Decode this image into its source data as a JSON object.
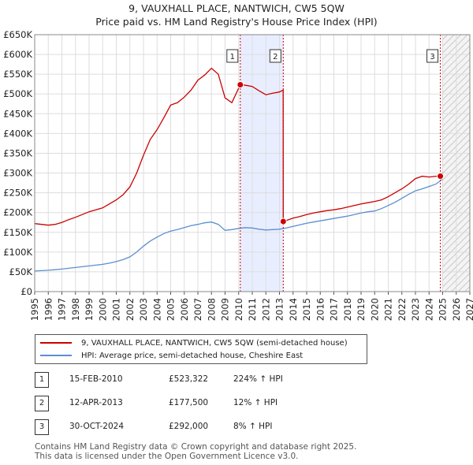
{
  "title_line1": "9, VAUXHALL PLACE, NANTWICH, CW5 5QW",
  "title_line2": "Price paid vs. HM Land Registry's House Price Index (HPI)",
  "colors": {
    "property": "#cc0000",
    "hpi": "#5b8fd0",
    "shade": "#e8eeff",
    "marker_line": "#cc0000"
  },
  "chart_data": {
    "type": "line",
    "title": "Price paid vs. HM Land Registry's House Price Index (HPI)",
    "xlabel": "",
    "ylabel": "",
    "xlim": [
      1995,
      2027
    ],
    "ylim": [
      0,
      650000
    ],
    "x_ticks": [
      1995,
      1996,
      1997,
      1998,
      1999,
      2000,
      2001,
      2002,
      2003,
      2004,
      2005,
      2006,
      2007,
      2008,
      2009,
      2010,
      2011,
      2012,
      2013,
      2014,
      2015,
      2016,
      2017,
      2018,
      2019,
      2020,
      2021,
      2022,
      2023,
      2024,
      2025,
      2026,
      2027
    ],
    "y_ticks": [
      {
        "value": 0,
        "label": "£0"
      },
      {
        "value": 50000,
        "label": "£50K"
      },
      {
        "value": 100000,
        "label": "£100K"
      },
      {
        "value": 150000,
        "label": "£150K"
      },
      {
        "value": 200000,
        "label": "£200K"
      },
      {
        "value": 250000,
        "label": "£250K"
      },
      {
        "value": 300000,
        "label": "£300K"
      },
      {
        "value": 350000,
        "label": "£350K"
      },
      {
        "value": 400000,
        "label": "£400K"
      },
      {
        "value": 450000,
        "label": "£450K"
      },
      {
        "value": 500000,
        "label": "£500K"
      },
      {
        "value": 550000,
        "label": "£550K"
      },
      {
        "value": 600000,
        "label": "£600K"
      },
      {
        "value": 650000,
        "label": "£650K"
      }
    ],
    "shaded_range": [
      2010.12,
      2013.28
    ],
    "future_hatch_from": 2025.0,
    "series": [
      {
        "name": "9, VAUXHALL PLACE, NANTWICH, CW5 5QW (semi-detached house)",
        "color": "#cc0000",
        "x": [
          1995.0,
          1995.5,
          1996.0,
          1996.5,
          1997.0,
          1997.5,
          1998.0,
          1998.5,
          1999.0,
          1999.5,
          2000.0,
          2000.5,
          2001.0,
          2001.5,
          2002.0,
          2002.5,
          2003.0,
          2003.5,
          2004.0,
          2004.5,
          2005.0,
          2005.5,
          2006.0,
          2006.5,
          2007.0,
          2007.5,
          2008.0,
          2008.5,
          2009.0,
          2009.5,
          2010.12,
          2010.5,
          2011.0,
          2011.5,
          2012.0,
          2012.5,
          2013.0,
          2013.27,
          2013.28,
          2013.5,
          2014.0,
          2014.5,
          2015.0,
          2015.5,
          2016.0,
          2016.5,
          2017.0,
          2017.5,
          2018.0,
          2018.5,
          2019.0,
          2019.5,
          2020.0,
          2020.5,
          2021.0,
          2021.5,
          2022.0,
          2022.5,
          2023.0,
          2023.5,
          2024.0,
          2024.5,
          2024.83,
          2025.0
        ],
        "values": [
          172000,
          170000,
          168000,
          170000,
          175000,
          182000,
          188000,
          195000,
          202000,
          207000,
          212000,
          222000,
          232000,
          245000,
          265000,
          300000,
          345000,
          385000,
          410000,
          440000,
          472000,
          478000,
          492000,
          510000,
          535000,
          548000,
          565000,
          550000,
          490000,
          478000,
          523322,
          522000,
          519000,
          508000,
          498000,
          502000,
          505000,
          510000,
          177500,
          180000,
          186000,
          190000,
          195000,
          199000,
          202000,
          205000,
          207000,
          210000,
          214000,
          218000,
          222000,
          225000,
          228000,
          232000,
          240000,
          250000,
          260000,
          272000,
          286000,
          292000,
          290000,
          292000,
          292000,
          300000
        ]
      },
      {
        "name": "HPI: Average price, semi-detached house, Cheshire East",
        "color": "#5b8fd0",
        "x": [
          1995.0,
          1995.5,
          1996.0,
          1996.5,
          1997.0,
          1997.5,
          1998.0,
          1998.5,
          1999.0,
          1999.5,
          2000.0,
          2000.5,
          2001.0,
          2001.5,
          2002.0,
          2002.5,
          2003.0,
          2003.5,
          2004.0,
          2004.5,
          2005.0,
          2005.5,
          2006.0,
          2006.5,
          2007.0,
          2007.5,
          2008.0,
          2008.5,
          2009.0,
          2009.5,
          2010.0,
          2010.5,
          2011.0,
          2011.5,
          2012.0,
          2012.5,
          2013.0,
          2013.5,
          2014.0,
          2014.5,
          2015.0,
          2015.5,
          2016.0,
          2016.5,
          2017.0,
          2017.5,
          2018.0,
          2018.5,
          2019.0,
          2019.5,
          2020.0,
          2020.5,
          2021.0,
          2021.5,
          2022.0,
          2022.5,
          2023.0,
          2023.5,
          2024.0,
          2024.5,
          2025.0
        ],
        "values": [
          52000,
          53000,
          54000,
          55500,
          57000,
          59000,
          61000,
          63000,
          65000,
          67000,
          69000,
          72000,
          76000,
          81000,
          88000,
          100000,
          115000,
          128000,
          138000,
          147000,
          153000,
          157000,
          162000,
          167000,
          170000,
          174000,
          176000,
          170000,
          155000,
          157000,
          160000,
          162000,
          161000,
          158000,
          156000,
          157000,
          158000,
          161000,
          165000,
          169000,
          173000,
          176000,
          179000,
          182000,
          185000,
          188000,
          191000,
          195000,
          199000,
          202000,
          204000,
          210000,
          218000,
          226000,
          236000,
          246000,
          255000,
          260000,
          266000,
          272000,
          285000
        ]
      }
    ],
    "annotations": [
      {
        "label": "1",
        "x": 2010.12,
        "y": 523322
      },
      {
        "label": "2",
        "x": 2013.28,
        "y": 177500
      },
      {
        "label": "3",
        "x": 2024.83,
        "y": 292000
      }
    ]
  },
  "legend": {
    "property_label": "9, VAUXHALL PLACE, NANTWICH, CW5 5QW (semi-detached house)",
    "hpi_label": "HPI: Average price, semi-detached house, Cheshire East"
  },
  "sales": [
    {
      "num": "1",
      "date": "15-FEB-2010",
      "price": "£523,322",
      "hpi": "224% ↑ HPI"
    },
    {
      "num": "2",
      "date": "12-APR-2013",
      "price": "£177,500",
      "hpi": "12% ↑ HPI"
    },
    {
      "num": "3",
      "date": "30-OCT-2024",
      "price": "£292,000",
      "hpi": "8% ↑ HPI"
    }
  ],
  "footer": {
    "line1": "Contains HM Land Registry data © Crown copyright and database right 2025.",
    "line2": "This data is licensed under the Open Government Licence v3.0."
  }
}
